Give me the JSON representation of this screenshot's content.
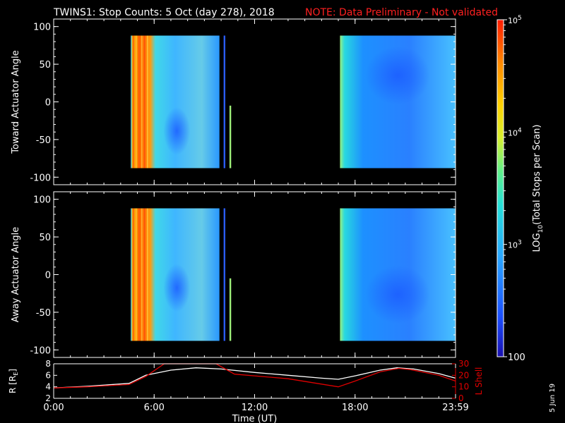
{
  "header": {
    "title": "TWINS1: Stop Counts:  5 Oct (day 278), 2018",
    "note": "NOTE: Data Preliminary - Not validated"
  },
  "footer": {
    "date_stamp": "5 Jun 19"
  },
  "colors": {
    "background": "#000000",
    "note": "#ff2020",
    "axis": "#ffffff",
    "lshell": "#e00000"
  },
  "chart_data": [
    {
      "type": "heatmap",
      "name": "toward",
      "ylabel": "Toward Actuator Angle",
      "xlim": [
        0,
        24
      ],
      "ylim": [
        -110,
        110
      ],
      "yticks": [
        100,
        50,
        0,
        -50,
        -100
      ],
      "data_blocks": [
        {
          "t_start": 4.6,
          "t_end": 9.9,
          "y_min": -88,
          "y_max": 88
        },
        {
          "t_start": 10.15,
          "t_end": 10.25,
          "y_min": -88,
          "y_max": 88
        },
        {
          "t_start": 10.5,
          "t_end": 10.6,
          "y_min": -88,
          "y_max": -5
        },
        {
          "t_start": 17.1,
          "t_end": 24.0,
          "y_min": -88,
          "y_max": 88
        }
      ]
    },
    {
      "type": "heatmap",
      "name": "away",
      "ylabel": "Away Actuator Angle",
      "xlim": [
        0,
        24
      ],
      "ylim": [
        -110,
        110
      ],
      "yticks": [
        100,
        50,
        0,
        -50,
        -100
      ],
      "data_blocks": [
        {
          "t_start": 4.6,
          "t_end": 9.9,
          "y_min": -88,
          "y_max": 88
        },
        {
          "t_start": 10.15,
          "t_end": 10.25,
          "y_min": -88,
          "y_max": 88
        },
        {
          "t_start": 10.5,
          "t_end": 10.6,
          "y_min": -88,
          "y_max": -5
        },
        {
          "t_start": 17.1,
          "t_end": 24.0,
          "y_min": -88,
          "y_max": 88
        }
      ]
    },
    {
      "type": "line",
      "name": "orbit",
      "xlabel": "Time (UT)",
      "xticks": [
        "0:00",
        "6:00",
        "12:00",
        "18:00",
        "23:59"
      ],
      "xlim": [
        0,
        24
      ],
      "ylabel_left": "R [R",
      "ylabel_left_sub": "E",
      "ylabel_left_end": "]",
      "ylabel_right": "L Shell",
      "ylim_left": [
        2,
        8
      ],
      "yticks_left": [
        "8",
        "6",
        "4",
        "2"
      ],
      "ylim_right": [
        0,
        30
      ],
      "yticks_right": [
        "30",
        "20",
        "10",
        "0"
      ],
      "series": [
        {
          "axis": "left",
          "color": "#ffffff",
          "x": [
            0,
            2,
            4.5,
            5.5,
            7,
            8.5,
            10,
            12,
            14,
            16,
            17,
            18,
            19.5,
            20.5,
            21.5,
            23,
            24
          ],
          "y": [
            3.8,
            4.1,
            4.6,
            6.0,
            6.9,
            7.3,
            7.1,
            6.5,
            6.0,
            5.5,
            5.3,
            5.9,
            6.9,
            7.3,
            7.1,
            6.3,
            5.5
          ]
        },
        {
          "axis": "right",
          "color": "#e00000",
          "x": [
            0,
            2,
            4.5,
            5.5,
            6.6,
            9.7,
            10.8,
            14,
            17,
            18,
            19.5,
            20.6,
            21.3,
            23,
            24
          ],
          "y": [
            9,
            10,
            12,
            19,
            30,
            30,
            21,
            17,
            10,
            15,
            23,
            26,
            25,
            20,
            15
          ]
        }
      ]
    },
    {
      "type": "colorbar",
      "name": "colorbar",
      "label": "LOG10(Total Stops per Scan)",
      "label_pre": "LOG",
      "label_sub": "10",
      "label_post": "(Total Stops per Scan)",
      "scale": "log",
      "range": [
        100,
        100000
      ],
      "ticks": [
        {
          "value": 100000,
          "base": "10",
          "exp": "5"
        },
        {
          "value": 10000,
          "base": "10",
          "exp": "4"
        },
        {
          "value": 1000,
          "base": "10",
          "exp": "3"
        },
        {
          "value": 100,
          "label": "100"
        }
      ]
    }
  ]
}
